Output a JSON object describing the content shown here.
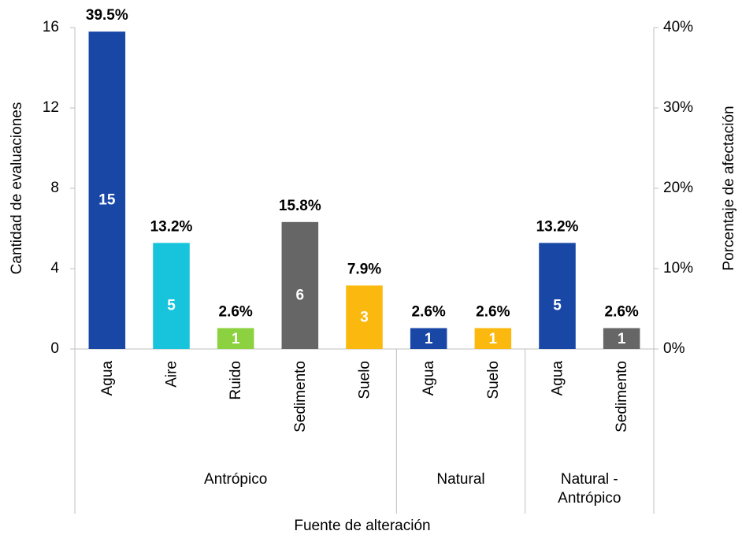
{
  "chart_data": {
    "type": "bar",
    "x_label": "Fuente de alteración",
    "y_label": "Cantidad de evaluaciones",
    "y2_label": "Porcentaje de afectación",
    "ylim": [
      0,
      16
    ],
    "yticks": [
      0,
      4,
      8,
      12,
      16
    ],
    "y2lim": [
      0,
      40
    ],
    "y2ticks": [
      {
        "value": 0,
        "label": "0%"
      },
      {
        "value": 10,
        "label": "10%"
      },
      {
        "value": 20,
        "label": "20%"
      },
      {
        "value": 30,
        "label": "30%"
      },
      {
        "value": 40,
        "label": "40%"
      }
    ],
    "groups": [
      {
        "name": "Antrópico",
        "categories": [
          "Agua",
          "Aire",
          "Ruido",
          "Sedimento",
          "Suelo"
        ]
      },
      {
        "name": "Natural",
        "categories": [
          "Agua",
          "Suelo"
        ]
      },
      {
        "name": "Natural - Antrópico",
        "categories": [
          "Agua",
          "Sedimento"
        ]
      }
    ],
    "values": [
      39.5,
      13.2,
      2.6,
      15.8,
      7.9,
      2.6,
      2.6,
      13.2,
      2.6
    ],
    "value_labels": [
      "39.5%",
      "13.2%",
      "2.6%",
      "15.8%",
      "7.9%",
      "2.6%",
      "2.6%",
      "13.2%",
      "2.6%"
    ],
    "axis": "y2",
    "counts": [
      15,
      5,
      1,
      6,
      3,
      1,
      1,
      5,
      1
    ],
    "colors": [
      "#1847a6",
      "#17c4dc",
      "#8cd13f",
      "#666666",
      "#fbb80f",
      "#1847a6",
      "#fbb80f",
      "#1847a6",
      "#666666"
    ]
  }
}
